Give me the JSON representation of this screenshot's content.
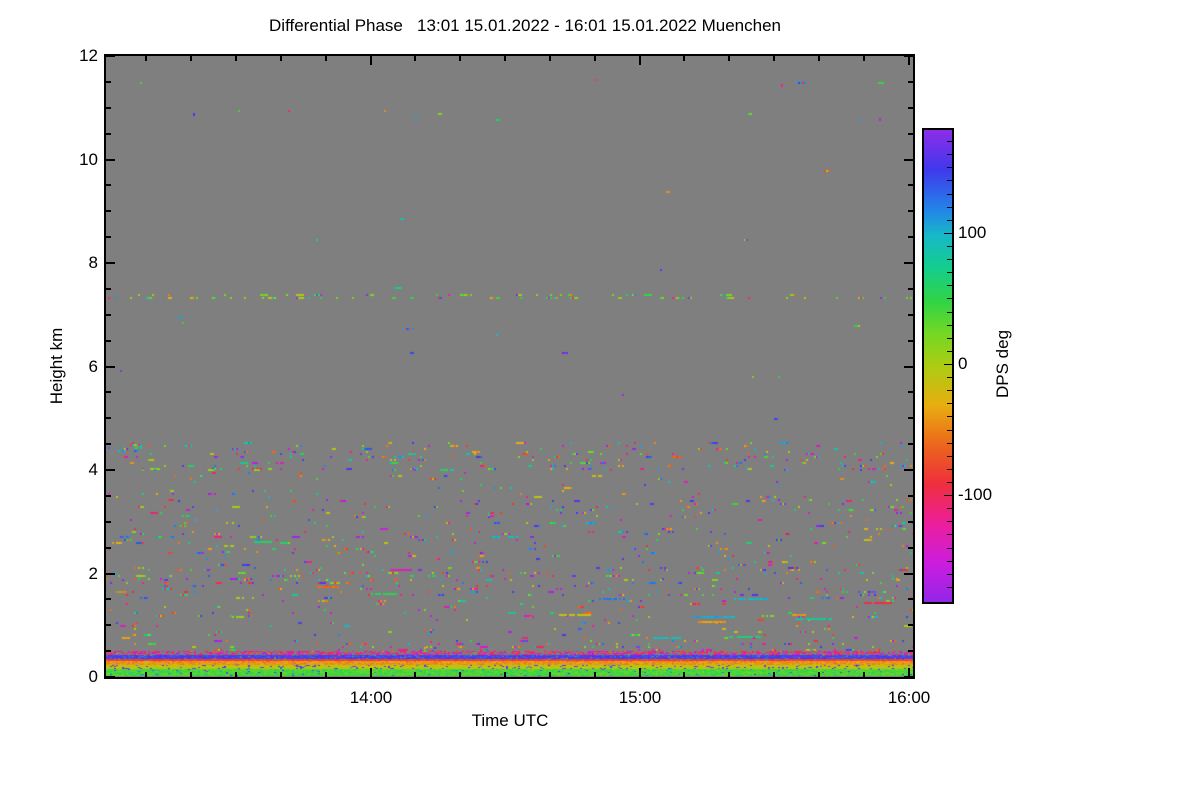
{
  "chart_data": {
    "type": "heatmap",
    "title": "Differential Phase",
    "title_full": "Differential Phase   13:01 15.01.2022 - 16:01 15.01.2022 Muenchen",
    "time_start": "13:01 15.01.2022",
    "time_end": "16:01 15.01.2022",
    "station": "Muenchen",
    "xlabel": "Time UTC",
    "ylabel": "Height km",
    "colorbar_label": "DPS deg",
    "ylim": [
      0,
      12
    ],
    "y_major_ticks": [
      0,
      2,
      4,
      6,
      8,
      10,
      12
    ],
    "y_minor_step": 0.5,
    "x_range_minutes": [
      0,
      180
    ],
    "x_major_ticks": [
      {
        "t": 59,
        "label": "14:00"
      },
      {
        "t": 119,
        "label": "15:00"
      },
      {
        "t": 179,
        "label": "16:00"
      }
    ],
    "x_minor_first": 9,
    "x_minor_step": 10,
    "value_range": [
      -180,
      180
    ],
    "colorbar_major_ticks": [
      {
        "v": 100,
        "label": "100"
      },
      {
        "v": 0,
        "label": "0"
      },
      {
        "v": -100,
        "label": "-100"
      }
    ],
    "colorbar_minor_step": 10,
    "no_data_color": "#7f7f7f",
    "axis_color": "#000000",
    "background_color": "#ffffff",
    "legend_position": "right",
    "grid": false,
    "render_seed": 7,
    "palette_stops": [
      {
        "v": 180,
        "color": "#8d2de8"
      },
      {
        "v": 150,
        "color": "#4038ec"
      },
      {
        "v": 120,
        "color": "#2383e8"
      },
      {
        "v": 100,
        "color": "#18b7c9"
      },
      {
        "v": 75,
        "color": "#14cd8d"
      },
      {
        "v": 50,
        "color": "#2fd348"
      },
      {
        "v": 25,
        "color": "#73d824"
      },
      {
        "v": 0,
        "color": "#accc12"
      },
      {
        "v": -30,
        "color": "#e7ae10"
      },
      {
        "v": -60,
        "color": "#ec661c"
      },
      {
        "v": -90,
        "color": "#ee2f3d"
      },
      {
        "v": -120,
        "color": "#ec1f9b"
      },
      {
        "v": -150,
        "color": "#cc1ddd"
      },
      {
        "v": -180,
        "color": "#9326e8"
      }
    ],
    "speckle_layers": [
      {
        "h": [
          11.38,
          11.55
        ],
        "d": 0.006
      },
      {
        "h": [
          10.72,
          10.95
        ],
        "d": 0.005
      },
      {
        "h": [
          7.45,
          10.6
        ],
        "d": 0.0005
      },
      {
        "h": [
          7.28,
          7.4
        ],
        "d": 0.22,
        "phase": 20,
        "spread": 50
      },
      {
        "h": [
          4.6,
          7.2
        ],
        "d": 0.0014
      },
      {
        "h": [
          4.33,
          4.55
        ],
        "d": 0.08
      },
      {
        "h": [
          4.33,
          4.5
        ],
        "d": 0.3,
        "t_range": [
          0,
          8
        ],
        "phase": 110,
        "spread": 45
      },
      {
        "h": [
          4.02,
          4.33
        ],
        "d": 0.11
      },
      {
        "h": [
          3.72,
          4.02
        ],
        "d": 0.04
      },
      {
        "h": [
          3.42,
          3.72
        ],
        "d": 0.04
      },
      {
        "h": [
          3.12,
          3.42
        ],
        "d": 0.06
      },
      {
        "h": [
          2.78,
          3.12
        ],
        "d": 0.05
      },
      {
        "h": [
          2.42,
          2.78
        ],
        "d": 0.065
      },
      {
        "h": [
          2.08,
          2.42
        ],
        "d": 0.055
      },
      {
        "h": [
          1.9,
          2.08
        ],
        "d": 0.12
      },
      {
        "h": [
          1.48,
          1.9
        ],
        "d": 0.09
      },
      {
        "h": [
          1.5,
          1.66
        ],
        "d": 0.1,
        "t_range": [
          149,
          180
        ]
      },
      {
        "h": [
          1.18,
          1.48
        ],
        "d": 0.05
      },
      {
        "h": [
          0.88,
          1.18
        ],
        "d": 0.04
      },
      {
        "h": [
          0.66,
          0.88
        ],
        "d": 0.05
      },
      {
        "h": [
          0.5,
          0.66
        ],
        "d": 0.1
      },
      {
        "h": [
          0.5,
          0.92
        ],
        "d": 0.45,
        "t_range": [
          70.5,
          73.5
        ]
      }
    ],
    "ground_bands": [
      {
        "h": [
          0.42,
          0.505
        ],
        "phase": -115,
        "spread": 90,
        "density": 0.55
      },
      {
        "h": [
          0.355,
          0.42
        ],
        "phase": 148,
        "spread": 42,
        "density": 0.97
      },
      {
        "h": [
          0.315,
          0.355
        ],
        "phase": -82,
        "spread": 26,
        "density": 0.96
      },
      {
        "h": [
          0.225,
          0.315
        ],
        "phase": -40,
        "spread": 25,
        "density": 1
      },
      {
        "h": [
          0.145,
          0.225
        ],
        "phase": -8,
        "spread": 28,
        "density": 1,
        "outlier_phase": 150,
        "outlier_spread": 60,
        "outlier_prob": 0.13
      },
      {
        "h": [
          0.02,
          0.145
        ],
        "phase": 40,
        "spread": 26,
        "density": 1,
        "outlier_phase": 120,
        "outlier_spread": 80,
        "outlier_prob": 0.04
      }
    ],
    "dash_features": [
      {
        "t": 140,
        "h": 1.53,
        "len": 8,
        "phase": 100
      },
      {
        "t": 110,
        "h": 1.53,
        "len": 6,
        "phase": 125
      },
      {
        "t": 131,
        "h": 1.17,
        "len": 9,
        "phase": 105
      },
      {
        "t": 132,
        "h": 1.09,
        "len": 6,
        "phase": -38
      },
      {
        "t": 154,
        "h": 1.14,
        "len": 8,
        "phase": 80
      },
      {
        "t": 153,
        "h": 1.21,
        "len": 3,
        "phase": -42
      },
      {
        "t": 122,
        "h": 0.78,
        "len": 6,
        "phase": 95
      },
      {
        "t": 139,
        "h": 0.8,
        "len": 7,
        "phase": 65
      },
      {
        "t": 101,
        "h": 1.21,
        "len": 7,
        "phase": -12
      },
      {
        "t": 59,
        "h": 1.62,
        "len": 6,
        "phase": 55
      },
      {
        "t": 47,
        "h": 1.76,
        "len": 5,
        "phase": -60
      },
      {
        "t": 169,
        "h": 1.45,
        "len": 6,
        "phase": -95
      },
      {
        "t": 63,
        "h": 2.08,
        "len": 5,
        "phase": -130
      },
      {
        "t": 33,
        "h": 2.62,
        "len": 4,
        "phase": 60
      }
    ],
    "isolated_points": [
      {
        "t": 19.5,
        "h": 10.9,
        "phase": 150
      },
      {
        "t": 69,
        "h": 10.85,
        "phase": 110
      },
      {
        "t": 150.5,
        "h": 11.45,
        "phase": -120
      },
      {
        "t": 172.5,
        "h": 10.8,
        "phase": -150
      }
    ]
  }
}
